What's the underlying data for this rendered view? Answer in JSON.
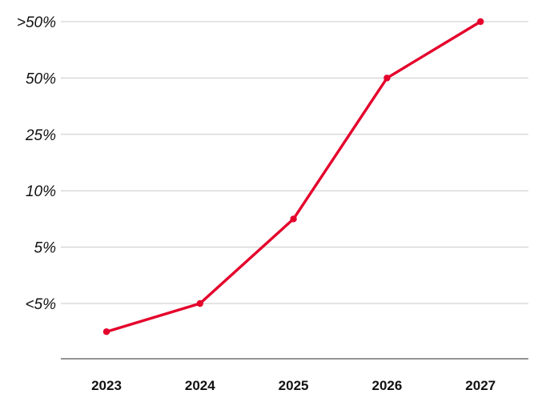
{
  "chart_data": {
    "type": "line",
    "categories": [
      "2023",
      "2024",
      "2025",
      "2026",
      "2027"
    ],
    "y_ticks": [
      "<5%",
      "5%",
      "10%",
      "25%",
      "50%",
      ">50%"
    ],
    "y_tick_values": [
      1,
      2,
      3,
      4,
      5,
      6
    ],
    "series": [
      {
        "values": [
          0.5,
          1,
          2.5,
          5,
          6
        ]
      }
    ],
    "ylim": [
      0,
      6
    ],
    "grid": true,
    "legend": "none",
    "colors": {
      "line": "#e4002b",
      "grid": "#c8c8c8",
      "axis": "#555555"
    }
  }
}
